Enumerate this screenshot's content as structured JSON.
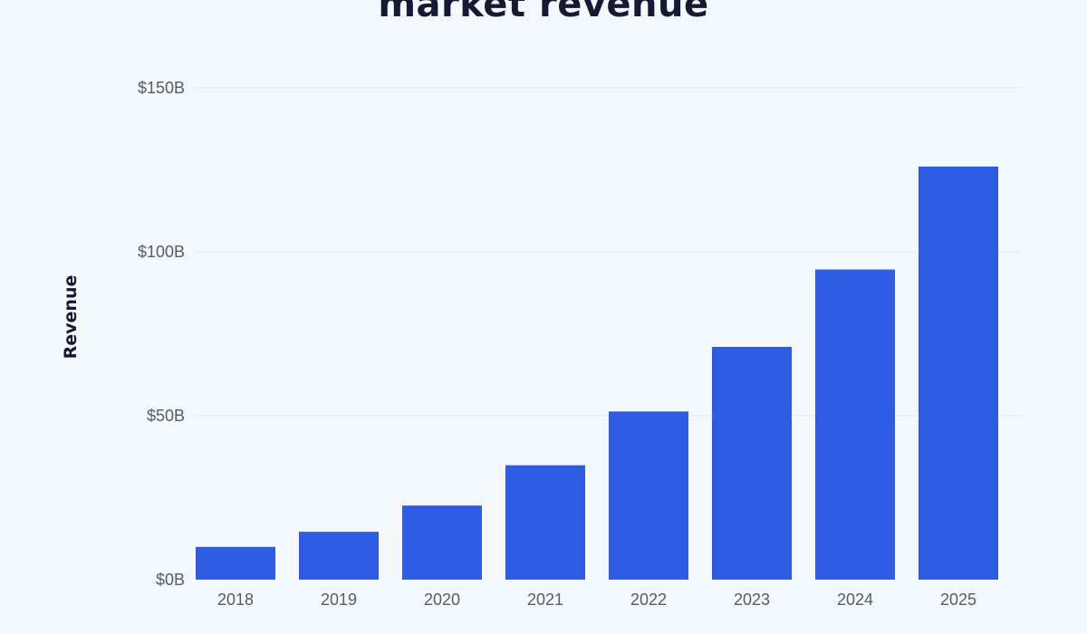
{
  "chart_data": {
    "type": "bar",
    "title": "market revenue",
    "xlabel": "",
    "ylabel": "Revenue",
    "categories": [
      "2018",
      "2019",
      "2020",
      "2021",
      "2022",
      "2023",
      "2024",
      "2025"
    ],
    "values": [
      10,
      14.6,
      22.6,
      34.9,
      51.3,
      71,
      94.6,
      126
    ],
    "units": "billion USD",
    "ylim": [
      0,
      150
    ],
    "yticks": [
      0,
      50,
      100,
      150
    ],
    "ytick_labels": [
      "$0B",
      "$50B",
      "$100B",
      "$150B"
    ],
    "grid": true,
    "legend": "none",
    "colors": {
      "bar": "#2e5ce3",
      "grid": "#e2e8ee",
      "background": "#f4f9fd",
      "title": "#141a33",
      "tick": "#555b6b"
    }
  }
}
